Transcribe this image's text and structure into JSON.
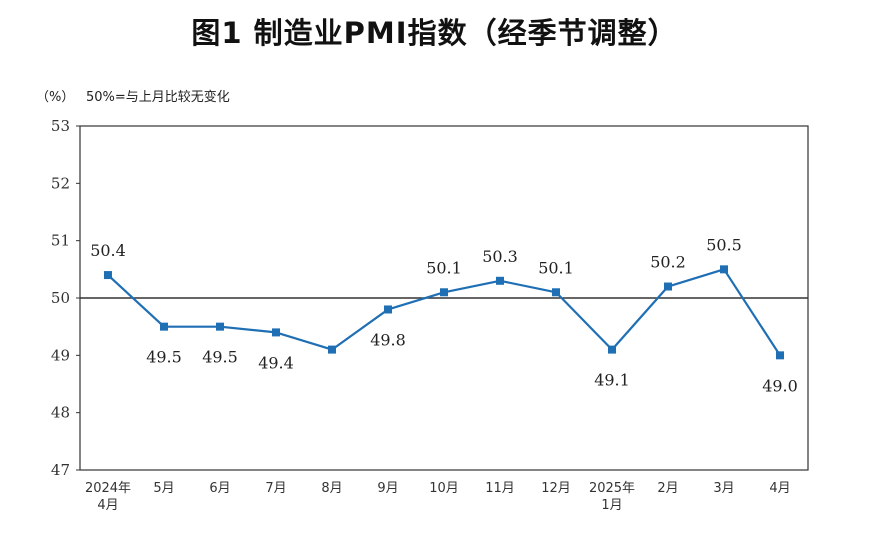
{
  "title": "图1  制造业PMI指数（经季节调整）",
  "unit_label": "（%）",
  "note": "50%=与上月比较无变化",
  "colors": {
    "line": "#1f6fb5",
    "axis": "#333333",
    "reference": "#333333"
  },
  "chart_data": {
    "type": "line",
    "categories": [
      [
        "2024年",
        "4月"
      ],
      [
        "5月"
      ],
      [
        "6月"
      ],
      [
        "7月"
      ],
      [
        "8月"
      ],
      [
        "9月"
      ],
      [
        "10月"
      ],
      [
        "11月"
      ],
      [
        "12月"
      ],
      [
        "2025年",
        "1月"
      ],
      [
        "2月"
      ],
      [
        "3月"
      ],
      [
        "4月"
      ]
    ],
    "values": [
      50.4,
      49.5,
      49.5,
      49.4,
      49.1,
      49.8,
      50.1,
      50.3,
      50.1,
      49.1,
      50.2,
      50.5,
      49.0
    ],
    "data_labels": [
      "50.4",
      "49.5",
      "49.5",
      "49.4",
      "",
      "49.8",
      "50.1",
      "50.3",
      "50.1",
      "49.1",
      "50.2",
      "50.5",
      "49.0"
    ],
    "label_position": [
      "above",
      "below",
      "below",
      "below",
      "below",
      "below",
      "above",
      "above",
      "above",
      "below",
      "above",
      "above",
      "below"
    ],
    "yticks": [
      "47",
      "48",
      "49",
      "50",
      "51",
      "52",
      "53"
    ],
    "ylim": [
      47,
      53
    ],
    "reference_line": 50,
    "grid": false,
    "marker": "square"
  }
}
